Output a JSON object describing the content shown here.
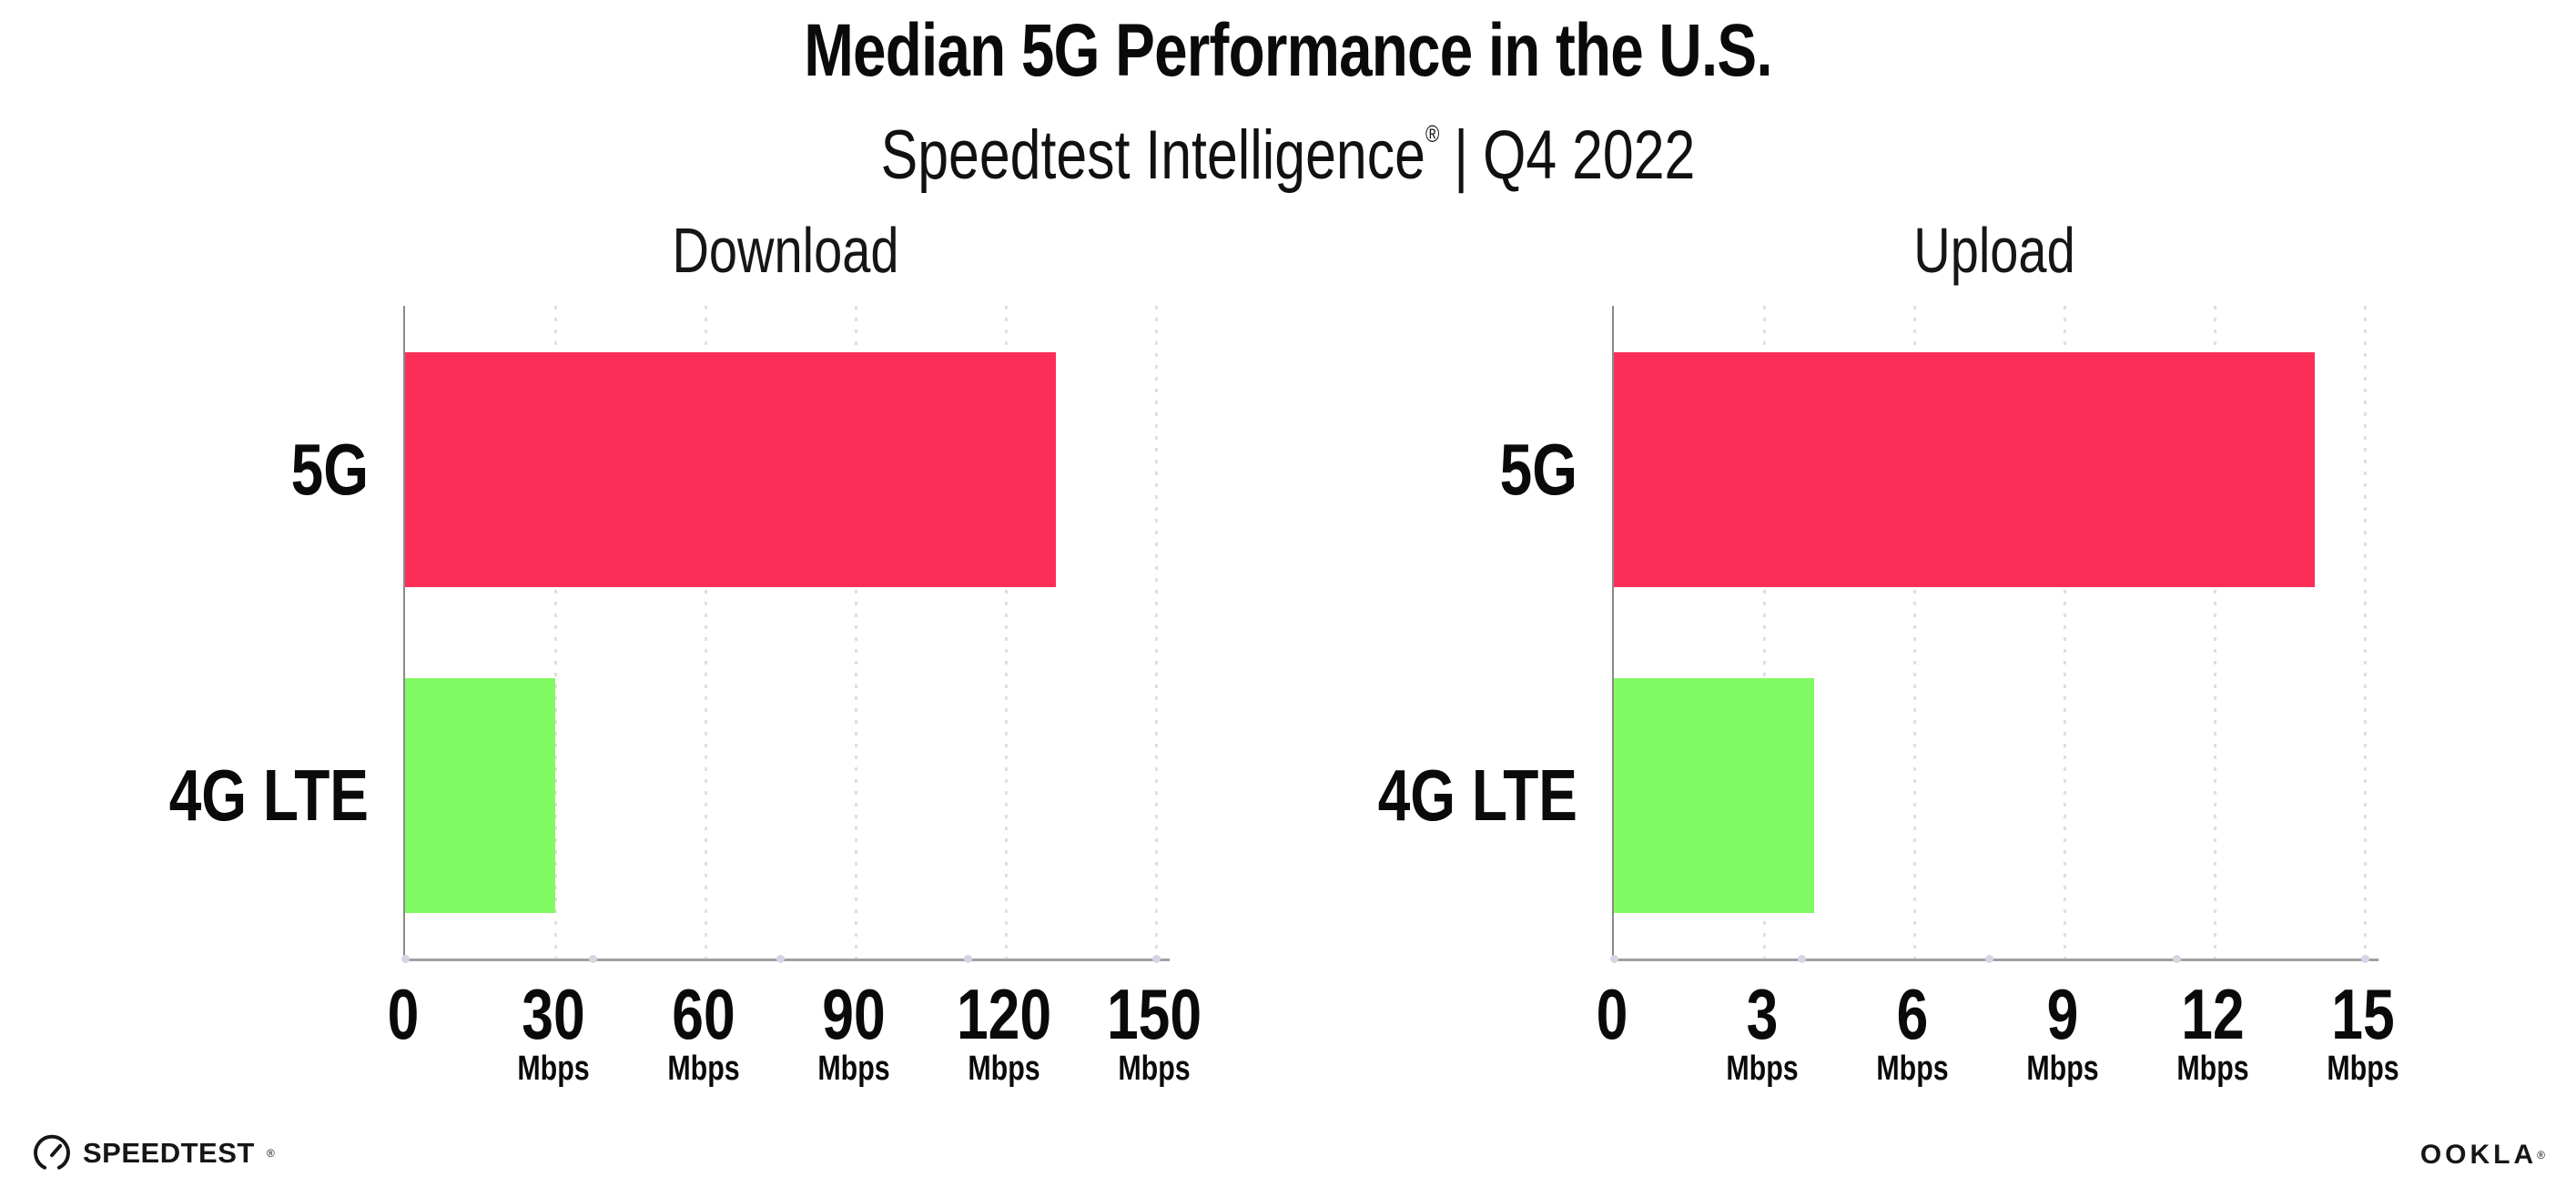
{
  "header": {
    "title": "Median 5G Performance in the U.S.",
    "subtitle_brand": "Speedtest Intelligence",
    "subtitle_registered_mark": "®",
    "subtitle_divider": "|",
    "subtitle_period": "Q4 2022"
  },
  "chart_data": [
    {
      "type": "bar",
      "orientation": "horizontal",
      "title": "Download",
      "categories": [
        "5G",
        "4G LTE"
      ],
      "values": [
        130,
        30
      ],
      "value_unit": "Mbps",
      "xlim": [
        0,
        150
      ],
      "xticks": [
        0,
        30,
        60,
        90,
        120,
        150
      ],
      "xtick_unit_label": "Mbps",
      "bar_colors": [
        "#FC2E57",
        "#81FA63"
      ],
      "grid": "vertical-dotted",
      "legend": "none"
    },
    {
      "type": "bar",
      "orientation": "horizontal",
      "title": "Upload",
      "categories": [
        "5G",
        "4G LTE"
      ],
      "values": [
        14,
        4
      ],
      "value_unit": "Mbps",
      "xlim": [
        0,
        15
      ],
      "xticks": [
        0,
        3,
        6,
        9,
        12,
        15
      ],
      "xtick_unit_label": "Mbps",
      "bar_colors": [
        "#FC2E57",
        "#81FA63"
      ],
      "grid": "vertical-dotted",
      "legend": "none"
    }
  ],
  "footer": {
    "speedtest_logo_text": "SPEEDTEST",
    "speedtest_logo_mark": "®",
    "ookla_logo_text": "OOKLA",
    "ookla_logo_mark": "®"
  },
  "colors": {
    "bar_5g": "#FC2E57",
    "bar_4g_lte": "#81FA63",
    "background": "#FFFFFF",
    "text": "#0D0D0D",
    "axis_line": "#9B9B9B",
    "gridline_dots": "#DEDEE8"
  }
}
